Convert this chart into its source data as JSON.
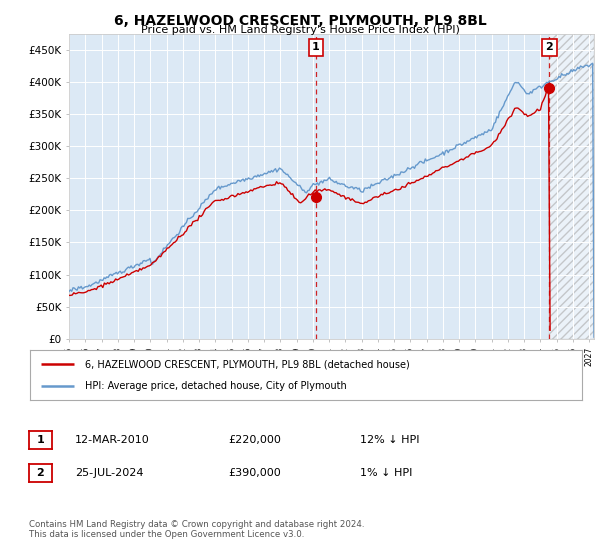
{
  "title": "6, HAZELWOOD CRESCENT, PLYMOUTH, PL9 8BL",
  "subtitle": "Price paid vs. HM Land Registry's House Price Index (HPI)",
  "legend_label_red": "6, HAZELWOOD CRESCENT, PLYMOUTH, PL9 8BL (detached house)",
  "legend_label_blue": "HPI: Average price, detached house, City of Plymouth",
  "transaction1_date": "12-MAR-2010",
  "transaction1_price": "£220,000",
  "transaction1_hpi": "12% ↓ HPI",
  "transaction2_date": "25-JUL-2024",
  "transaction2_price": "£390,000",
  "transaction2_hpi": "1% ↓ HPI",
  "footer": "Contains HM Land Registry data © Crown copyright and database right 2024.\nThis data is licensed under the Open Government Licence v3.0.",
  "ylim": [
    0,
    475000
  ],
  "yticks": [
    0,
    50000,
    100000,
    150000,
    200000,
    250000,
    300000,
    350000,
    400000,
    450000
  ],
  "background_color": "#ffffff",
  "plot_background": "#dce9f5",
  "hpi_color": "#6699cc",
  "price_color": "#cc0000",
  "marker1_x": 2010.2,
  "marker1_y": 220000,
  "marker2_x": 2024.56,
  "marker2_y": 390000,
  "shaded_region_start": 2024.56,
  "shaded_region_end": 2027.3,
  "xmin": 1995,
  "xmax": 2027.3
}
